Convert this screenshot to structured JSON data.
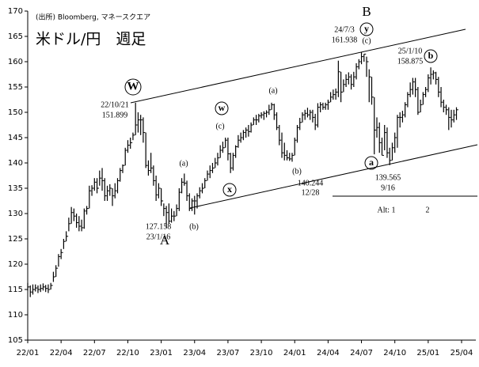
{
  "chart_data": {
    "type": "hlc",
    "source": "(出所) Bloomberg, マネースクエア",
    "title": "米ドル/円　週足",
    "categories": [
      "22/01",
      null,
      null,
      null,
      null,
      null,
      null,
      null,
      null,
      null,
      null,
      null,
      null,
      "22/04",
      null,
      null,
      null,
      null,
      null,
      null,
      null,
      null,
      null,
      null,
      null,
      null,
      "22/07",
      null,
      null,
      null,
      null,
      null,
      null,
      null,
      null,
      null,
      null,
      null,
      null,
      "22/10",
      null,
      null,
      null,
      null,
      null,
      null,
      null,
      null,
      null,
      null,
      null,
      null,
      "23/01",
      null,
      null,
      null,
      null,
      null,
      null,
      null,
      null,
      null,
      null,
      null,
      null,
      "23/04",
      null,
      null,
      null,
      null,
      null,
      null,
      null,
      null,
      null,
      null,
      null,
      null,
      "23/07",
      null,
      null,
      null,
      null,
      null,
      null,
      null,
      null,
      null,
      null,
      null,
      null,
      "23/10",
      null,
      null,
      null,
      null,
      null,
      null,
      null,
      null,
      null,
      null,
      null,
      null,
      "24/01",
      null,
      null,
      null,
      null,
      null,
      null,
      null,
      null,
      null,
      null,
      null,
      null,
      "24/04",
      null,
      null,
      null,
      null,
      null,
      null,
      null,
      null,
      null,
      null,
      null,
      null,
      "24/07",
      null,
      null,
      null,
      null,
      null,
      null,
      null,
      null,
      null,
      null,
      null,
      null,
      "24/10",
      null,
      null,
      null,
      null,
      null,
      null,
      null,
      null,
      null,
      null,
      null,
      null,
      "25/01",
      null,
      null,
      null,
      null,
      null,
      null,
      null,
      null,
      null,
      null,
      null,
      null,
      "25/04"
    ],
    "high": [
      116.3,
      115.8,
      116,
      116,
      115.8,
      116,
      116.2,
      115.9,
      116,
      116.3,
      118.5,
      119.8,
      122,
      123,
      125,
      126.5,
      129.2,
      131.3,
      131,
      130,
      129.5,
      128.8,
      131,
      131.5,
      135.5,
      135.6,
      137,
      137,
      138.5,
      139,
      137,
      135.5,
      135.8,
      135,
      136,
      137,
      139,
      139.7,
      143,
      144.5,
      145,
      146,
      151.899,
      150,
      149.5,
      149,
      146,
      140.5,
      142,
      139.5,
      137.5,
      136,
      135,
      132,
      131.5,
      132,
      131,
      130.5,
      131.8,
      135,
      137,
      137.9,
      136.5,
      134,
      133,
      133.5,
      134,
      135.2,
      136,
      137,
      138.5,
      139.5,
      140,
      141,
      142,
      143.5,
      144.2,
      145,
      145,
      142,
      142,
      143.5,
      145.5,
      146,
      146.5,
      147,
      147.5,
      148,
      149,
      149.5,
      149.7,
      150,
      150.2,
      150.4,
      151.5,
      151.9,
      151.7,
      150,
      147.5,
      146,
      144,
      142.5,
      142,
      142,
      145,
      147.5,
      148.9,
      150,
      150.5,
      150.9,
      150.5,
      150.5,
      149.7,
      151.8,
      152,
      151.9,
      151.9,
      152.5,
      154,
      154.5,
      154.7,
      160.2,
      158,
      156.5,
      157.5,
      157.9,
      157.5,
      158,
      159.7,
      160.5,
      161.938,
      161.5,
      161,
      158.5,
      157,
      153,
      149,
      148,
      145,
      147.5,
      147,
      143,
      144,
      146,
      149.5,
      150,
      150.3,
      152,
      154,
      155.9,
      156.8,
      156.8,
      155,
      152.5,
      154,
      155,
      157.5,
      158.875,
      158.3,
      158,
      157,
      155,
      152.5,
      151.5,
      151,
      150.5,
      150.5,
      151,
      null,
      null
    ],
    "low": [
      114.8,
      113.5,
      114,
      114.6,
      114.3,
      114.5,
      114.8,
      114.5,
      114.3,
      115,
      116.5,
      117.5,
      119.5,
      121,
      123,
      124.5,
      126.5,
      128,
      128.5,
      127.2,
      126.5,
      126.5,
      127,
      129.8,
      131,
      133.5,
      134.5,
      134,
      135.5,
      134.5,
      132.5,
      132.5,
      133.5,
      131.5,
      133,
      134,
      136.3,
      138,
      139.5,
      142,
      142.8,
      144.5,
      145.5,
      146,
      145.5,
      144,
      139,
      137.5,
      138,
      135.5,
      132.5,
      133,
      131.5,
      129.5,
      127.158,
      128,
      128.2,
      128.5,
      129.5,
      130.5,
      134,
      135.5,
      132.5,
      130.5,
      130.5,
      129.8,
      131,
      133,
      134,
      135,
      136.5,
      137,
      138,
      139,
      139.5,
      141,
      142,
      143,
      140.5,
      138,
      138.5,
      141,
      143,
      144,
      144.5,
      145,
      145.2,
      146,
      147.5,
      147.5,
      148,
      148.8,
      148.5,
      149,
      149.5,
      150.5,
      148.5,
      146.5,
      143.5,
      141,
      140.5,
      140.5,
      140.4,
      140.244,
      141.5,
      144,
      146.5,
      148,
      148.5,
      149,
      148.5,
      148,
      146.5,
      147,
      150,
      150.5,
      150.5,
      150.5,
      152,
      152.5,
      152.5,
      153,
      152,
      154,
      155,
      155.5,
      154.5,
      155,
      156.5,
      158.5,
      159.5,
      160,
      157,
      152,
      151.5,
      141.7,
      145,
      142,
      141.5,
      142.5,
      141,
      139.565,
      140.5,
      142,
      143,
      147,
      148,
      149,
      151,
      153,
      153.5,
      153,
      149.5,
      150,
      151.5,
      153,
      154,
      155.5,
      156.5,
      155.5,
      153,
      151,
      150,
      149.5,
      146.5,
      147,
      148,
      148.5,
      null,
      null
    ],
    "close": [
      115.5,
      114.5,
      115,
      115.3,
      115,
      115.2,
      115.5,
      115.2,
      115,
      115.8,
      117.5,
      119.2,
      121.5,
      122.3,
      124.5,
      125.5,
      128,
      130.2,
      129.5,
      128.2,
      127.5,
      127.2,
      130.5,
      131,
      134.5,
      135,
      136.2,
      135,
      137,
      136.5,
      133.5,
      134.5,
      135,
      133.5,
      134.5,
      136.5,
      138.5,
      139.5,
      142.5,
      143.5,
      144,
      145.5,
      147.5,
      148.5,
      148.5,
      146,
      139.5,
      138.5,
      139,
      136.5,
      133.7,
      135,
      132.5,
      131,
      130.2,
      128.5,
      129.5,
      129.5,
      131,
      134.2,
      136.2,
      136,
      133.5,
      131,
      132.5,
      132.5,
      133.5,
      134.5,
      135,
      136.5,
      137.8,
      138.5,
      139,
      140,
      141,
      142.5,
      143,
      144.5,
      141.8,
      139,
      141.5,
      143.2,
      144.5,
      145,
      146,
      146.5,
      146.2,
      147.5,
      148.5,
      148.5,
      149.3,
      149.5,
      149.8,
      150,
      150.5,
      151.5,
      149.5,
      147,
      144.5,
      142,
      141.5,
      141,
      140.8,
      141.5,
      144.5,
      147,
      148,
      149.5,
      149.8,
      149.5,
      150,
      149,
      147.5,
      151,
      151.5,
      151,
      151.5,
      152,
      153,
      153.5,
      154,
      158,
      154,
      155.5,
      156.5,
      157,
      155.5,
      157,
      159,
      160,
      161,
      161.5,
      160,
      157,
      153,
      146.5,
      147,
      144,
      141.5,
      146,
      142,
      140.5,
      143,
      145,
      149,
      149,
      149.5,
      151.5,
      153.5,
      154.5,
      156,
      154.5,
      150,
      151.5,
      153.5,
      154.5,
      156.8,
      157.5,
      157.8,
      156.5,
      154,
      152,
      151,
      150.5,
      149,
      148.5,
      149.5,
      150.5,
      null,
      null
    ],
    "color": "#000000",
    "ylim": [
      105,
      170
    ],
    "yticks": [
      105,
      110,
      115,
      120,
      125,
      130,
      135,
      140,
      145,
      150,
      155,
      160,
      165,
      170
    ],
    "annotations": [
      "W",
      "22/10/21",
      "151.899",
      "(a)",
      "(b)",
      "A",
      "127.158",
      "23/1/16",
      "w",
      "(c)",
      "x",
      "(a)",
      "(b)",
      "140.244",
      "12/28",
      "B",
      "y",
      "(c)",
      "24/7/3",
      "161.938",
      "a",
      "139.565",
      "9/16",
      "25/1/10",
      "158.875",
      "b",
      "Alt: 1",
      "2"
    ]
  }
}
